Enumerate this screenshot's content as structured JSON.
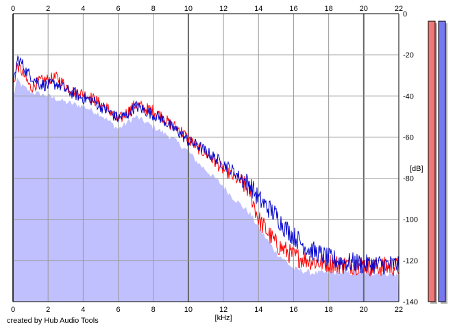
{
  "chart_data": {
    "type": "area",
    "xlabel": "[kHz]",
    "ylabel": "[dB]",
    "xlim": [
      0,
      22
    ],
    "ylim": [
      -140,
      0
    ],
    "x_ticks": [
      0,
      2,
      4,
      6,
      8,
      10,
      12,
      14,
      16,
      18,
      20,
      22
    ],
    "y_ticks": [
      0,
      -20,
      -40,
      -60,
      -80,
      -100,
      -120,
      -140
    ],
    "grid": true,
    "series": [
      {
        "channel": "left",
        "color": "#ff0000",
        "x": [
          0,
          0.25,
          0.5,
          0.75,
          1,
          1.5,
          2,
          2.5,
          3,
          3.5,
          4,
          4.5,
          5,
          5.5,
          6,
          6.5,
          7,
          7.5,
          8,
          8.5,
          9,
          9.5,
          10,
          10.5,
          11,
          11.5,
          12,
          12.5,
          13,
          13.5,
          14,
          14.5,
          15,
          15.5,
          16,
          16.5,
          17,
          17.5,
          18,
          18.5,
          19,
          19.5,
          20,
          20.5,
          21,
          21.5,
          22
        ],
        "y": [
          -35,
          -25,
          -28,
          -32,
          -36,
          -33,
          -32,
          -31,
          -35,
          -38,
          -39,
          -41,
          -44,
          -47,
          -52,
          -48,
          -44,
          -46,
          -47,
          -50,
          -54,
          -56,
          -61,
          -65,
          -68,
          -72,
          -76,
          -79,
          -82,
          -86,
          -100,
          -106,
          -112,
          -115,
          -118,
          -119,
          -120,
          -121,
          -121,
          -122,
          -122,
          -122,
          -122,
          -123,
          -123,
          -123,
          -123
        ]
      },
      {
        "channel": "right",
        "color": "#0000cc",
        "x": [
          0,
          0.25,
          0.5,
          0.75,
          1,
          1.5,
          2,
          2.5,
          3,
          3.5,
          4,
          4.5,
          5,
          5.5,
          6,
          6.5,
          7,
          7.5,
          8,
          8.5,
          9,
          9.5,
          10,
          10.5,
          11,
          11.5,
          12,
          12.5,
          13,
          13.5,
          14,
          14.5,
          15,
          15.5,
          16,
          16.5,
          17,
          17.5,
          18,
          18.5,
          19,
          19.5,
          20,
          20.5,
          21,
          21.5,
          22
        ],
        "y": [
          -36,
          -22,
          -24,
          -28,
          -30,
          -34,
          -35,
          -34,
          -37,
          -39,
          -41,
          -42,
          -45,
          -48,
          -51,
          -49,
          -45,
          -47,
          -49,
          -51,
          -55,
          -58,
          -62,
          -64,
          -67,
          -70,
          -73,
          -76,
          -80,
          -83,
          -90,
          -94,
          -98,
          -104,
          -108,
          -112,
          -115,
          -117,
          -119,
          -120,
          -121,
          -121,
          -122,
          -122,
          -122,
          -122,
          -122
        ]
      }
    ],
    "filled_area": {
      "color": "#c0c0ff",
      "x": [
        0,
        0.25,
        0.5,
        1,
        2,
        3,
        4,
        5,
        6,
        7,
        8,
        9,
        10,
        10.5,
        11,
        11.5,
        12,
        12.5,
        13,
        13.5,
        14,
        14.5,
        15,
        15.5,
        16,
        16.5,
        17,
        18,
        19,
        20,
        21,
        22
      ],
      "y": [
        -40,
        -32,
        -35,
        -38,
        -40,
        -43,
        -45,
        -49,
        -56,
        -50,
        -55,
        -60,
        -67,
        -72,
        -76,
        -80,
        -84,
        -89,
        -93,
        -97,
        -104,
        -110,
        -116,
        -120,
        -124,
        -125,
        -126,
        -126,
        -126,
        -126,
        -126,
        -127
      ]
    },
    "level_meters": [
      {
        "channel": "left",
        "color": "#ee7777",
        "level": 0
      },
      {
        "channel": "right",
        "color": "#7777ee",
        "level": 0
      }
    ]
  },
  "credit": "created by Hub Audio Tools"
}
